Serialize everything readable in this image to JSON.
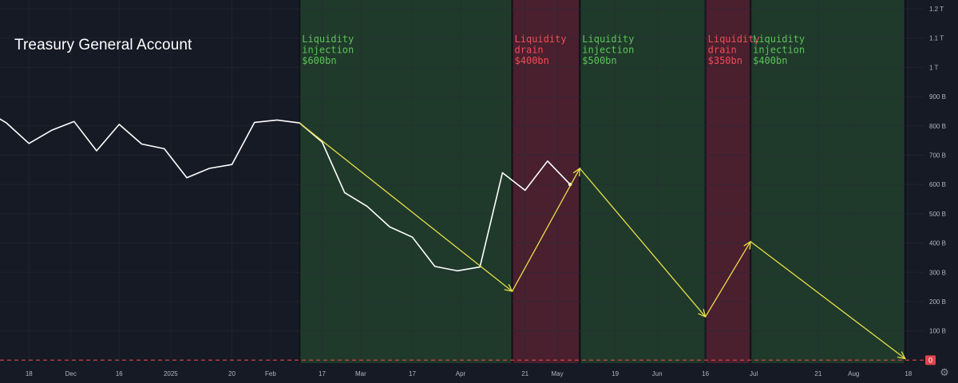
{
  "chart_title": "Treasury General Account",
  "colors": {
    "background": "#161a25",
    "grid": "#262b38",
    "series_line": "#ffffff",
    "arrow": "#e8e14a",
    "injection_band": "#1f3a2a",
    "drain_band": "#4a1f2e",
    "injection_text": "#5fc15c",
    "drain_text": "#ef4e55",
    "zero_line": "#e0454c",
    "axis_text": "#b2b5be"
  },
  "axis": {
    "y_ticks": [
      {
        "value": 0,
        "label": "0"
      },
      {
        "value": 100,
        "label": "100 B"
      },
      {
        "value": 200,
        "label": "200 B"
      },
      {
        "value": 300,
        "label": "300 B"
      },
      {
        "value": 400,
        "label": "400 B"
      },
      {
        "value": 500,
        "label": "500 B"
      },
      {
        "value": 600,
        "label": "600 B"
      },
      {
        "value": 700,
        "label": "700 B"
      },
      {
        "value": 800,
        "label": "800 B"
      },
      {
        "value": 900,
        "label": "900 B"
      },
      {
        "value": 1000,
        "label": "1 T"
      },
      {
        "value": 1100,
        "label": "1.1 T"
      },
      {
        "value": 1200,
        "label": "1.2 T"
      }
    ],
    "x_ticks": [
      {
        "date": "2024-11-18",
        "label": "18"
      },
      {
        "date": "2024-12-01",
        "label": "Dec"
      },
      {
        "date": "2024-12-16",
        "label": "16"
      },
      {
        "date": "2025-01-01",
        "label": "2025"
      },
      {
        "date": "2025-01-20",
        "label": "20"
      },
      {
        "date": "2025-02-01",
        "label": "Feb"
      },
      {
        "date": "2025-02-17",
        "label": "17"
      },
      {
        "date": "2025-03-01",
        "label": "Mar"
      },
      {
        "date": "2025-03-17",
        "label": "17"
      },
      {
        "date": "2025-04-01",
        "label": "Apr"
      },
      {
        "date": "2025-04-21",
        "label": "21"
      },
      {
        "date": "2025-05-01",
        "label": "May"
      },
      {
        "date": "2025-05-19",
        "label": "19"
      },
      {
        "date": "2025-06-01",
        "label": "Jun"
      },
      {
        "date": "2025-06-16",
        "label": "16"
      },
      {
        "date": "2025-07-01",
        "label": "Jul"
      },
      {
        "date": "2025-07-21",
        "label": "21"
      },
      {
        "date": "2025-08-01",
        "label": "Aug"
      },
      {
        "date": "2025-08-18",
        "label": "18"
      }
    ],
    "zero_badge": "0",
    "y_unit": "billions USD"
  },
  "chart_data": {
    "type": "line",
    "title": "Treasury General Account",
    "xlim": [
      "2024-11-09",
      "2025-08-23"
    ],
    "ylim": [
      -10,
      1230
    ],
    "grid": true,
    "series": [
      {
        "values": [
          {
            "x": "2024-11-08",
            "y": 830
          },
          {
            "x": "2024-11-11",
            "y": 810
          },
          {
            "x": "2024-11-18",
            "y": 740
          },
          {
            "x": "2024-11-25",
            "y": 785
          },
          {
            "x": "2024-12-02",
            "y": 815
          },
          {
            "x": "2024-12-09",
            "y": 715
          },
          {
            "x": "2024-12-16",
            "y": 805
          },
          {
            "x": "2024-12-23",
            "y": 738
          },
          {
            "x": "2024-12-30",
            "y": 722
          },
          {
            "x": "2025-01-06",
            "y": 623
          },
          {
            "x": "2025-01-13",
            "y": 655
          },
          {
            "x": "2025-01-20",
            "y": 668
          },
          {
            "x": "2025-01-27",
            "y": 812
          },
          {
            "x": "2025-02-03",
            "y": 820
          },
          {
            "x": "2025-02-10",
            "y": 810
          },
          {
            "x": "2025-02-17",
            "y": 745
          },
          {
            "x": "2025-02-24",
            "y": 572
          },
          {
            "x": "2025-03-03",
            "y": 525
          },
          {
            "x": "2025-03-10",
            "y": 455
          },
          {
            "x": "2025-03-17",
            "y": 420
          },
          {
            "x": "2025-03-24",
            "y": 320
          },
          {
            "x": "2025-03-31",
            "y": 305
          },
          {
            "x": "2025-04-07",
            "y": 318
          },
          {
            "x": "2025-04-14",
            "y": 640
          },
          {
            "x": "2025-04-21",
            "y": 580
          },
          {
            "x": "2025-04-28",
            "y": 680
          },
          {
            "x": "2025-05-05",
            "y": 600
          }
        ]
      }
    ],
    "bands": [
      {
        "kind": "injection",
        "start": "2025-02-10",
        "end": "2025-04-17",
        "label_lines": [
          "Liquidity",
          "injection",
          "$600bn"
        ]
      },
      {
        "kind": "drain",
        "start": "2025-04-17",
        "end": "2025-05-08",
        "label_lines": [
          "Liquidity",
          "drain",
          "$400bn"
        ]
      },
      {
        "kind": "injection",
        "start": "2025-05-08",
        "end": "2025-06-16",
        "label_lines": [
          "Liquidity",
          "injection",
          "$500bn"
        ]
      },
      {
        "kind": "drain",
        "start": "2025-06-16",
        "end": "2025-06-30",
        "label_lines": [
          "Liquidity",
          "drain",
          "$350bn"
        ]
      },
      {
        "kind": "injection",
        "start": "2025-06-30",
        "end": "2025-08-17",
        "label_lines": [
          "Liquidity",
          "injection",
          "$400bn"
        ]
      }
    ],
    "arrows": [
      {
        "from": {
          "x": "2025-02-10",
          "y": 810
        },
        "to": {
          "x": "2025-04-17",
          "y": 235
        }
      },
      {
        "from": {
          "x": "2025-04-17",
          "y": 235
        },
        "to": {
          "x": "2025-05-08",
          "y": 655
        }
      },
      {
        "from": {
          "x": "2025-05-08",
          "y": 655
        },
        "to": {
          "x": "2025-06-16",
          "y": 148
        }
      },
      {
        "from": {
          "x": "2025-06-16",
          "y": 148
        },
        "to": {
          "x": "2025-06-30",
          "y": 405
        }
      },
      {
        "from": {
          "x": "2025-06-30",
          "y": 405
        },
        "to": {
          "x": "2025-08-17",
          "y": 5
        }
      }
    ],
    "reference_line": {
      "y": 0,
      "style": "dashed"
    }
  }
}
